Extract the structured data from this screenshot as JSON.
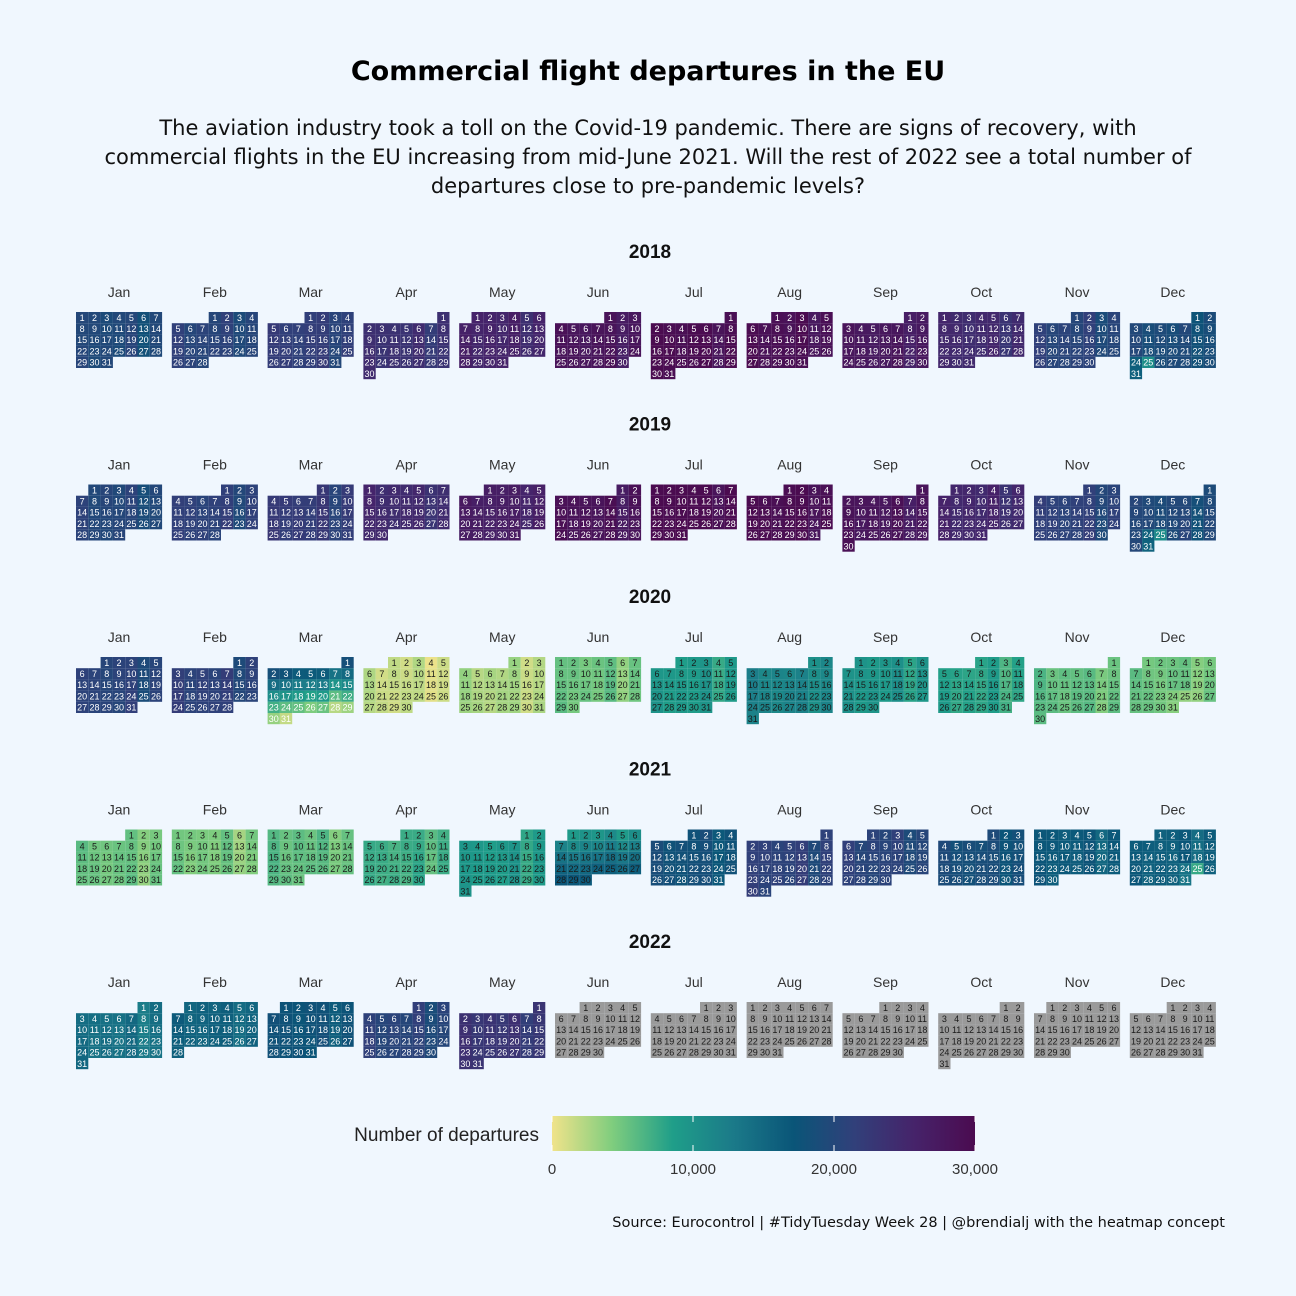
{
  "title": "Commercial flight departures in the EU",
  "subtitle": "The aviation industry took a toll on the Covid-19 pandemic. There are signs of recovery, with commercial flights in the EU increasing from mid-June 2021. Will the rest of 2022 see a total number of departures close to pre-pandemic levels?",
  "caption": "Source: Eurocontrol | #TidyTuesday Week 28 | @brendialj with the heatmap concept",
  "legend": {
    "title": "Number of departures",
    "ticks": [
      0,
      10000,
      20000,
      30000
    ],
    "tick_labels": [
      "0",
      "10,000",
      "20,000",
      "30,000"
    ],
    "colors": [
      "#f0e38a",
      "#7fcd7e",
      "#1f9e89",
      "#1b7a89",
      "#0a5578",
      "#31407a",
      "#46236a",
      "#4b0b50"
    ],
    "na_color": "#9a9a9a"
  },
  "chart_data": {
    "type": "heatmap",
    "description_free": true,
    "years": [
      "2018",
      "2019",
      "2020",
      "2021",
      "2022"
    ],
    "months": [
      "Jan",
      "Feb",
      "Mar",
      "Apr",
      "May",
      "Jun",
      "Jul",
      "Aug",
      "Sep",
      "Oct",
      "Nov",
      "Dec"
    ],
    "month_days": [
      31,
      28,
      31,
      30,
      31,
      30,
      31,
      31,
      30,
      31,
      30,
      31
    ],
    "weekday_offsets": {
      "2018": [
        0,
        3,
        3,
        6,
        1,
        4,
        6,
        2,
        5,
        0,
        3,
        5
      ],
      "2019": [
        1,
        4,
        4,
        0,
        2,
        5,
        0,
        3,
        6,
        1,
        4,
        6
      ],
      "2020": [
        2,
        5,
        6,
        2,
        4,
        0,
        2,
        5,
        1,
        3,
        6,
        1
      ],
      "2021": [
        4,
        0,
        0,
        3,
        5,
        1,
        3,
        6,
        2,
        4,
        0,
        2
      ],
      "2022": [
        5,
        1,
        1,
        4,
        6,
        2,
        4,
        0,
        3,
        5,
        1,
        3
      ]
    },
    "daily_departures_monthly_level": {
      "2018": [
        19500,
        20500,
        21500,
        23500,
        25500,
        28000,
        29500,
        29000,
        27500,
        24500,
        20500,
        19000
      ],
      "2019": [
        20000,
        21000,
        22000,
        24500,
        26500,
        28500,
        30000,
        29500,
        28000,
        25000,
        21000,
        19500
      ],
      "2020": [
        20500,
        21000,
        14500,
        1500,
        2500,
        5000,
        9000,
        11500,
        9500,
        8000,
        5500,
        5000
      ],
      "2021": [
        5000,
        4500,
        5500,
        7000,
        9000,
        12500,
        18000,
        21000,
        20500,
        18500,
        16500,
        16000
      ],
      "2022": [
        14000,
        15500,
        17500,
        20500,
        23000,
        null,
        null,
        null,
        null,
        null,
        null,
        null
      ]
    },
    "data_last_day": {
      "2022": [
        5,
        31
      ]
    }
  }
}
